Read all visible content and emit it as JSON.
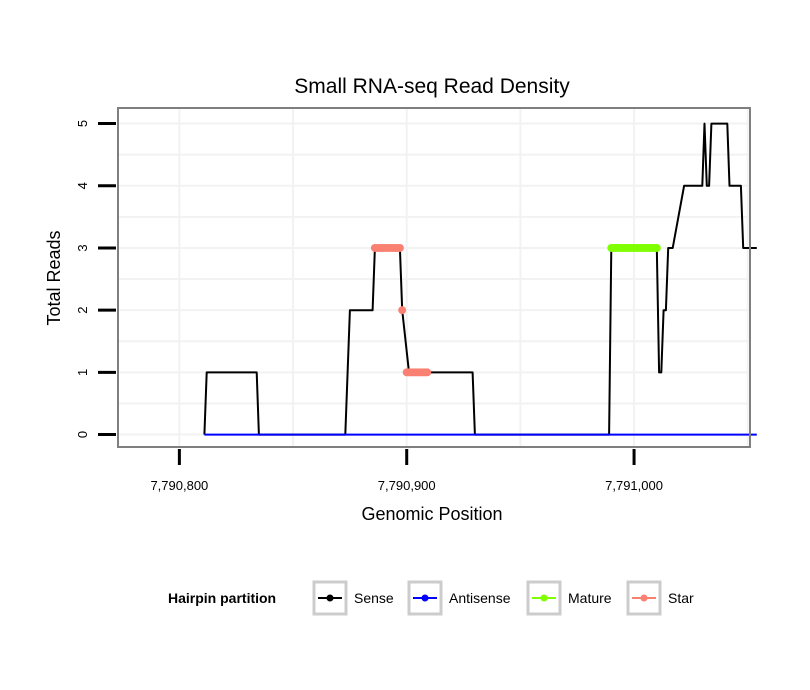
{
  "chart_data": {
    "type": "line",
    "title": "Small RNA-seq Read Density",
    "xlabel": "Genomic Position",
    "ylabel": "Total Reads",
    "xlim": [
      7790773,
      7791051
    ],
    "ylim": [
      -0.2,
      5.25
    ],
    "x_ticks": [
      7790800,
      7790900,
      7791000
    ],
    "x_tick_labels": [
      "7,790,800",
      "7,790,900",
      "7,791,000"
    ],
    "y_ticks": [
      0,
      1,
      2,
      3,
      4,
      5
    ],
    "y_tick_labels": [
      "0",
      "1",
      "2",
      "3",
      "4",
      "5"
    ],
    "grid": true,
    "legend": {
      "title": "Hairpin partition",
      "position": "bottom",
      "entries": [
        {
          "name": "Sense",
          "color": "#000000"
        },
        {
          "name": "Antisense",
          "color": "#0000ff"
        },
        {
          "name": "Mature",
          "color": "#7fff00"
        },
        {
          "name": "Star",
          "color": "#fa8072"
        }
      ]
    },
    "series": [
      {
        "name": "Sense",
        "color": "#000000",
        "x": [
          7790811,
          7790812,
          7790823,
          7790834,
          7790835,
          7790860,
          7790873,
          7790875,
          7790885,
          7790886,
          7790897,
          7790898,
          7790901,
          7790902,
          7790914,
          7790923,
          7790929,
          7790930,
          7790955,
          7790989,
          7790990,
          7791010,
          7791011,
          7791012,
          7791013,
          7791014,
          7791015,
          7791016,
          7791017,
          7791022,
          7791023,
          7791030,
          7791031,
          7791032,
          7791033,
          7791034,
          7791035,
          7791041,
          7791042,
          7791047,
          7791048,
          7791054
        ],
        "values": [
          0,
          1,
          1,
          1,
          0,
          0,
          0,
          2,
          2,
          3,
          3,
          2,
          1,
          1,
          1,
          1,
          1,
          0,
          0,
          0,
          3,
          3,
          1,
          1,
          2,
          2,
          3,
          3,
          3,
          4,
          4,
          4,
          5,
          4,
          4,
          5,
          5,
          5,
          4,
          4,
          3,
          3
        ]
      },
      {
        "name": "Antisense",
        "color": "#0000ff",
        "x": [
          7790811,
          7791054
        ],
        "values": [
          0,
          0
        ]
      },
      {
        "name": "Mature",
        "color": "#7fff00",
        "x": [
          7790990,
          7790991,
          7790992,
          7790993,
          7790994,
          7790995,
          7790996,
          7790997,
          7790998,
          7790999,
          7791000,
          7791001,
          7791002,
          7791003,
          7791004,
          7791005,
          7791006,
          7791007,
          7791008,
          7791009,
          7791010
        ],
        "values": [
          3,
          3,
          3,
          3,
          3,
          3,
          3,
          3,
          3,
          3,
          3,
          3,
          3,
          3,
          3,
          3,
          3,
          3,
          3,
          3,
          3
        ]
      },
      {
        "name": "Star",
        "color": "#fa8072",
        "x": [
          7790886,
          7790887,
          7790888,
          7790889,
          7790890,
          7790891,
          7790892,
          7790893,
          7790894,
          7790895,
          7790896,
          7790897,
          7790898,
          7790900,
          7790901,
          7790902,
          7790903,
          7790904,
          7790905,
          7790906,
          7790907,
          7790908,
          7790909
        ],
        "values": [
          3,
          3,
          3,
          3,
          3,
          3,
          3,
          3,
          3,
          3,
          3,
          3,
          2,
          1,
          1,
          1,
          1,
          1,
          1,
          1,
          1,
          1,
          1
        ]
      }
    ]
  }
}
